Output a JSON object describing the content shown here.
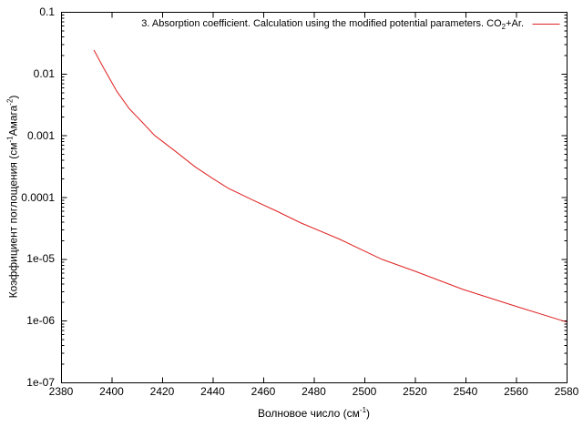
{
  "chart_data": {
    "type": "line",
    "title": "",
    "xlabel": "Волновое число (см^-1)",
    "xlabel_parts": [
      "Волновое число (см",
      "-1",
      ")"
    ],
    "ylabel": "Коэффициент поглощения (см^-1 Амага^-2)",
    "ylabel_parts": [
      "Коэффициент поглощения (см",
      "-1",
      "Амага",
      "-2",
      ")"
    ],
    "xlim": [
      2380,
      2580
    ],
    "ylim": [
      1e-07,
      0.1
    ],
    "yscale": "log",
    "grid": false,
    "background": "#ffffff",
    "axis_color": "#000000",
    "x_ticks": [
      2380,
      2400,
      2420,
      2440,
      2460,
      2480,
      2500,
      2520,
      2540,
      2560,
      2580
    ],
    "y_ticks": [
      0.1,
      0.01,
      0.001,
      0.0001,
      1e-05,
      1e-06,
      1e-07
    ],
    "y_tick_labels": [
      "0.1",
      "0.01",
      "0.001",
      "0.0001",
      "1e-05",
      "1e-06",
      "1e-07"
    ],
    "legend": {
      "position": "top-right",
      "label": "3. Absorption coefficient. Calculation using the modified potential parameters. CO2+Ar.",
      "label_parts": [
        "3. Absorption coefficient. Calculation using the modified potential parameters. CO",
        "2",
        "+Ar."
      ]
    },
    "series": [
      {
        "name": "3. Absorption coefficient. Calculation using the modified potential parameters. CO2+Ar.",
        "color": "#e02020",
        "points": [
          [
            2393,
            0.024
          ],
          [
            2397,
            0.012
          ],
          [
            2402,
            0.0052
          ],
          [
            2407,
            0.0027
          ],
          [
            2412,
            0.00165
          ],
          [
            2417,
            0.001
          ],
          [
            2425,
            0.00056
          ],
          [
            2433,
            0.00031
          ],
          [
            2440,
            0.0002
          ],
          [
            2446,
            0.00014
          ],
          [
            2456,
            8.9e-05
          ],
          [
            2465,
            6e-05
          ],
          [
            2475,
            3.8e-05
          ],
          [
            2490,
            2.1e-05
          ],
          [
            2507,
            9.8e-06
          ],
          [
            2520,
            6.3e-06
          ],
          [
            2539,
            3.2e-06
          ],
          [
            2560,
            1.7e-06
          ],
          [
            2580,
            9.5e-07
          ]
        ]
      }
    ]
  }
}
